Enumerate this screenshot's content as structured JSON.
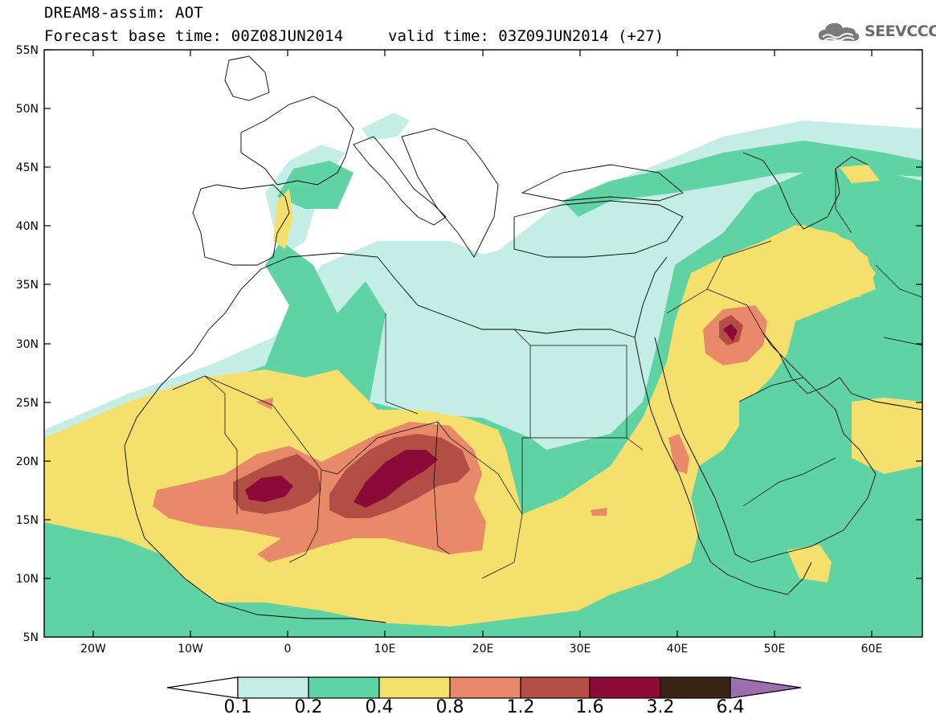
{
  "header": {
    "title_line1": "DREAM8-assim: AOT",
    "title_line2": "Forecast base time: 00Z08JUN2014",
    "valid_time": "valid time: 03Z09JUN2014 (+27)",
    "logo_text": "SEEVCCC",
    "logo_icon": "cloud-icon"
  },
  "map": {
    "lat_ticks": [
      "55N",
      "50N",
      "45N",
      "40N",
      "35N",
      "30N",
      "25N",
      "20N",
      "15N",
      "10N",
      "5N"
    ],
    "lon_ticks": [
      "20W",
      "10W",
      "0",
      "10E",
      "20E",
      "30E",
      "40E",
      "50E",
      "60E"
    ],
    "extent": {
      "lon_min": -25,
      "lon_max": 65,
      "lat_min": 5,
      "lat_max": 55
    }
  },
  "colorbar": {
    "labels": [
      "0.1",
      "0.2",
      "0.4",
      "0.8",
      "1.2",
      "1.6",
      "3.2",
      "6.4"
    ],
    "colors": [
      "#c4eee5",
      "#5fd3a4",
      "#f5e06e",
      "#e8896a",
      "#b34e46",
      "#8b0a38",
      "#3b2413",
      "#9b6fb0"
    ]
  }
}
